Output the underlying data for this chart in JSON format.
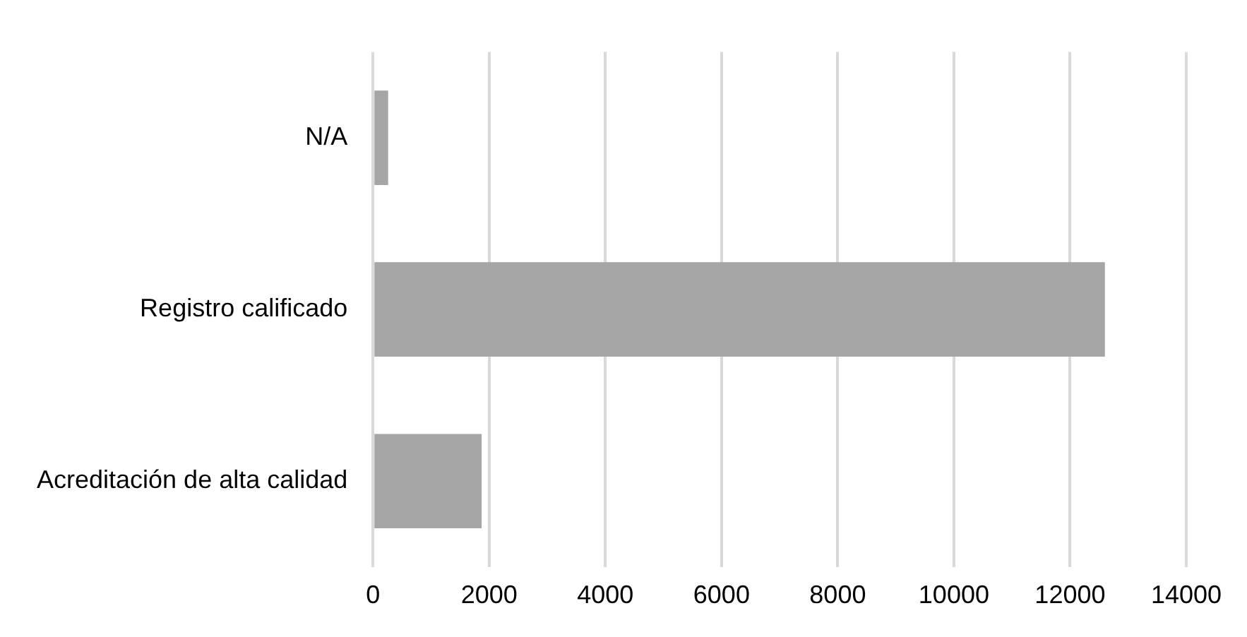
{
  "chart_data": {
    "type": "bar",
    "orientation": "horizontal",
    "categories": [
      "N/A",
      "Registro calificado",
      "Acreditación de alta calidad"
    ],
    "values": [
      260,
      12600,
      1870
    ],
    "color": "#a5a5a5",
    "xlim": [
      0,
      14000
    ],
    "xticks": [
      0,
      2000,
      4000,
      6000,
      8000,
      10000,
      12000,
      14000
    ],
    "grid": "x",
    "legend": false
  }
}
